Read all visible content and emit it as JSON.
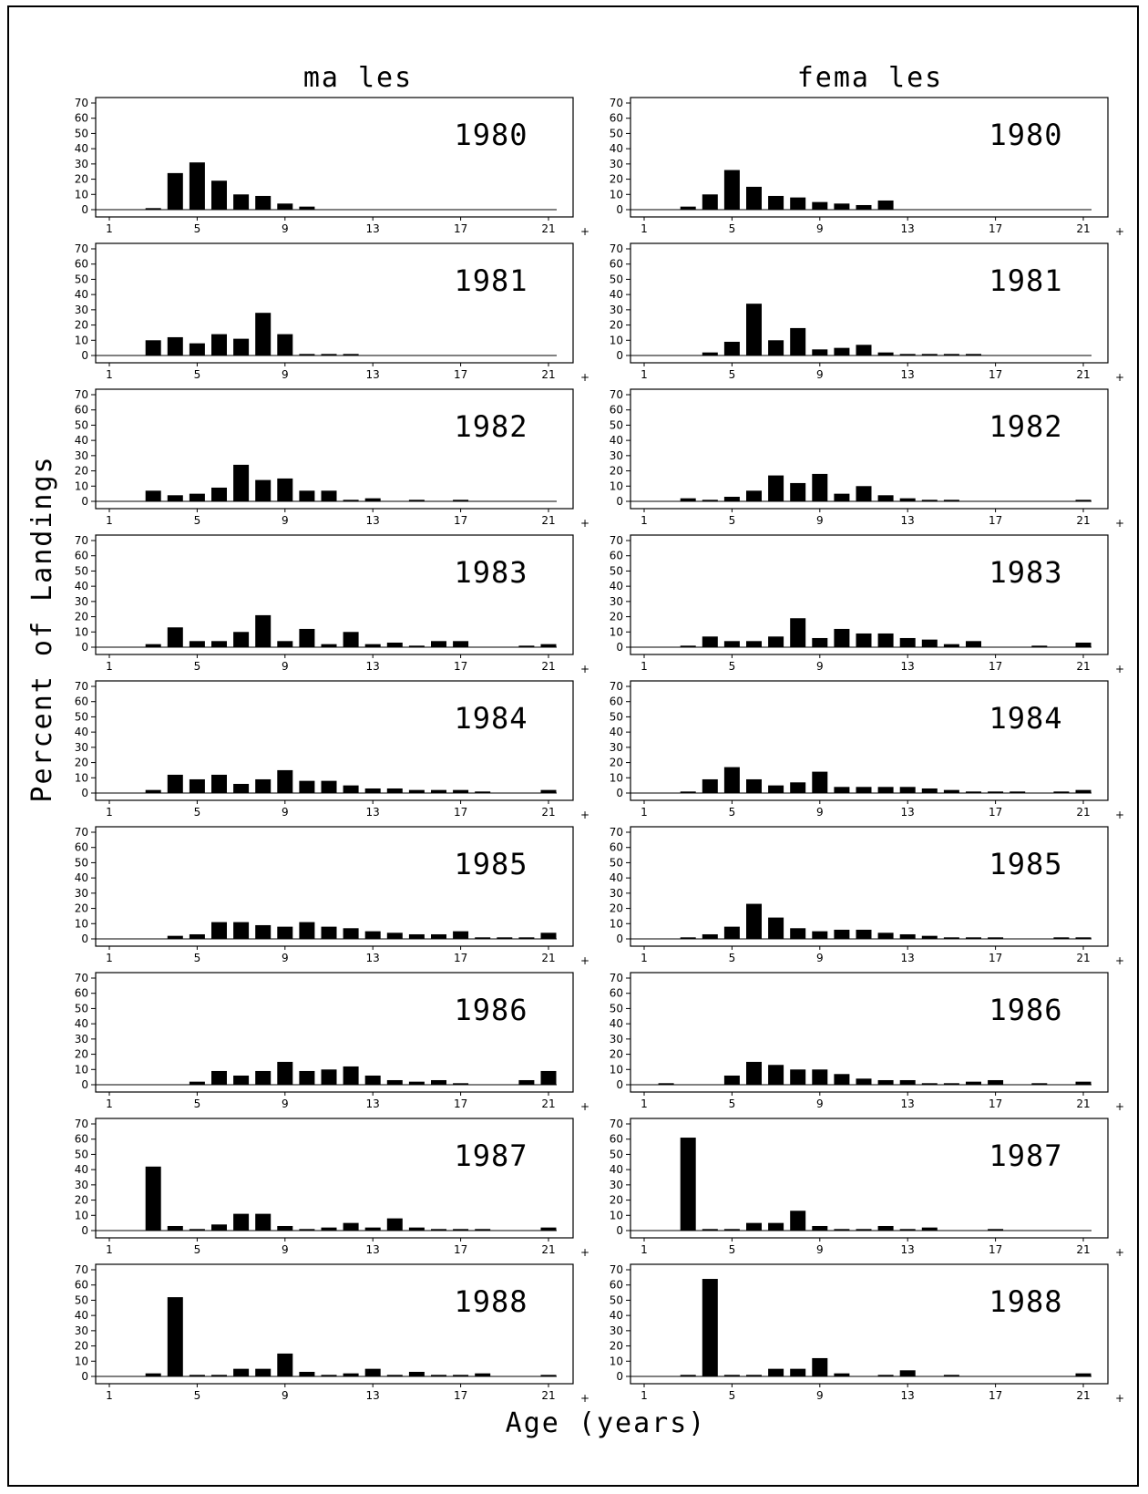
{
  "figure": {
    "column_titles": [
      "ma les",
      "fema les"
    ],
    "ylabel": "Percent of Landings",
    "xlabel": "Age (years)",
    "y_ticks": [
      "0",
      "10",
      "20",
      "30",
      "40",
      "50",
      "60",
      "70"
    ],
    "x_ticks": [
      "1",
      "5",
      "9",
      "13",
      "17",
      "21"
    ],
    "plus_marker": "+"
  },
  "chart_data": {
    "type": "bar",
    "ylim": [
      0,
      70
    ],
    "x": [
      1,
      2,
      3,
      4,
      5,
      6,
      7,
      8,
      9,
      10,
      11,
      12,
      13,
      14,
      15,
      16,
      17,
      18,
      19,
      20,
      21
    ],
    "x_note": "21+",
    "panels": [
      {
        "sex": "males",
        "year": "1980",
        "values": [
          0,
          0,
          1,
          24,
          31,
          19,
          10,
          9,
          4,
          2,
          0,
          0,
          0,
          0,
          0,
          0,
          0,
          0,
          0,
          0,
          0
        ]
      },
      {
        "sex": "females",
        "year": "1980",
        "values": [
          0,
          0,
          2,
          10,
          26,
          15,
          9,
          8,
          5,
          4,
          3,
          6,
          0,
          0,
          0,
          0,
          0,
          0,
          0,
          0,
          0
        ]
      },
      {
        "sex": "males",
        "year": "1981",
        "values": [
          0,
          0,
          10,
          12,
          8,
          14,
          11,
          28,
          14,
          1,
          1,
          1,
          0,
          0,
          0,
          0,
          0,
          0,
          0,
          0,
          0
        ]
      },
      {
        "sex": "females",
        "year": "1981",
        "values": [
          0,
          0,
          0,
          2,
          9,
          34,
          10,
          18,
          4,
          5,
          7,
          2,
          1,
          1,
          1,
          1,
          0,
          0,
          0,
          0,
          0
        ]
      },
      {
        "sex": "males",
        "year": "1982",
        "values": [
          0,
          0,
          7,
          4,
          5,
          9,
          24,
          14,
          15,
          7,
          7,
          1,
          2,
          0,
          1,
          0,
          1,
          0,
          0,
          0,
          0
        ]
      },
      {
        "sex": "females",
        "year": "1982",
        "values": [
          0,
          0,
          2,
          1,
          3,
          7,
          17,
          12,
          18,
          5,
          10,
          4,
          2,
          1,
          1,
          0,
          0,
          0,
          0,
          0,
          1
        ]
      },
      {
        "sex": "males",
        "year": "1983",
        "values": [
          0,
          0,
          2,
          13,
          4,
          4,
          10,
          21,
          4,
          12,
          2,
          10,
          2,
          3,
          1,
          4,
          4,
          0,
          0,
          1,
          2
        ]
      },
      {
        "sex": "females",
        "year": "1983",
        "values": [
          0,
          0,
          1,
          7,
          4,
          4,
          7,
          19,
          6,
          12,
          9,
          9,
          6,
          5,
          2,
          4,
          0,
          0,
          1,
          0,
          3
        ]
      },
      {
        "sex": "males",
        "year": "1984",
        "values": [
          0,
          0,
          2,
          12,
          9,
          12,
          6,
          9,
          15,
          8,
          8,
          5,
          3,
          3,
          2,
          2,
          2,
          1,
          0,
          0,
          2
        ]
      },
      {
        "sex": "females",
        "year": "1984",
        "values": [
          0,
          0,
          1,
          9,
          17,
          9,
          5,
          7,
          14,
          4,
          4,
          4,
          4,
          3,
          2,
          1,
          1,
          1,
          0,
          1,
          2
        ]
      },
      {
        "sex": "males",
        "year": "1985",
        "values": [
          0,
          0,
          0,
          2,
          3,
          11,
          11,
          9,
          8,
          11,
          8,
          7,
          5,
          4,
          3,
          3,
          5,
          1,
          1,
          1,
          4
        ]
      },
      {
        "sex": "females",
        "year": "1985",
        "values": [
          0,
          0,
          1,
          3,
          8,
          23,
          14,
          7,
          5,
          6,
          6,
          4,
          3,
          2,
          1,
          1,
          1,
          0,
          0,
          1,
          1
        ]
      },
      {
        "sex": "males",
        "year": "1986",
        "values": [
          0,
          0,
          0,
          0,
          2,
          9,
          6,
          9,
          15,
          9,
          10,
          12,
          6,
          3,
          2,
          3,
          1,
          0,
          0,
          3,
          9
        ]
      },
      {
        "sex": "females",
        "year": "1986",
        "values": [
          0,
          1,
          0,
          0,
          6,
          15,
          13,
          10,
          10,
          7,
          4,
          3,
          3,
          1,
          1,
          2,
          3,
          0,
          1,
          0,
          2
        ]
      },
      {
        "sex": "males",
        "year": "1987",
        "values": [
          0,
          0,
          42,
          3,
          1,
          4,
          11,
          11,
          3,
          1,
          2,
          5,
          2,
          8,
          2,
          1,
          1,
          1,
          0,
          0,
          2
        ]
      },
      {
        "sex": "females",
        "year": "1987",
        "values": [
          0,
          0,
          61,
          1,
          1,
          5,
          5,
          13,
          3,
          1,
          1,
          3,
          1,
          2,
          0,
          0,
          1,
          0,
          0,
          0,
          0
        ]
      },
      {
        "sex": "males",
        "year": "1988",
        "values": [
          0,
          0,
          2,
          52,
          1,
          1,
          5,
          5,
          15,
          3,
          1,
          2,
          5,
          1,
          3,
          1,
          1,
          2,
          0,
          0,
          1
        ]
      },
      {
        "sex": "females",
        "year": "1988",
        "values": [
          0,
          0,
          1,
          64,
          1,
          1,
          5,
          5,
          12,
          2,
          0,
          1,
          4,
          0,
          1,
          0,
          0,
          0,
          0,
          0,
          2
        ]
      }
    ]
  }
}
